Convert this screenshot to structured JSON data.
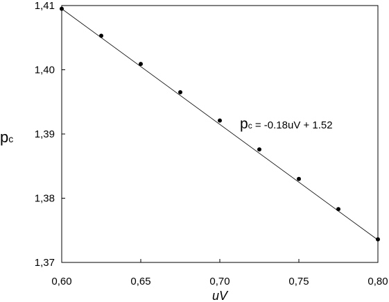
{
  "chart_data": {
    "type": "scatter",
    "xlabel": "uV",
    "ylabel": {
      "main": "p",
      "sub": "c"
    },
    "xlim": [
      0.6,
      0.8
    ],
    "ylim": [
      1.37,
      1.41
    ],
    "x_ticks": [
      0.6,
      0.65,
      0.7,
      0.75,
      0.8
    ],
    "y_ticks": [
      1.37,
      1.38,
      1.39,
      1.4,
      1.41
    ],
    "x_tick_labels": [
      "0,60",
      "0,65",
      "0,70",
      "0,75",
      "0,80"
    ],
    "y_tick_labels": [
      "1,37",
      "1,38",
      "1,39",
      "1,40",
      "1,41"
    ],
    "grid": false,
    "series": [
      {
        "x": [
          0.6,
          0.625,
          0.65,
          0.675,
          0.7,
          0.725,
          0.75,
          0.775,
          0.8
        ],
        "y": [
          1.4095,
          1.4053,
          1.4009,
          1.3965,
          1.3921,
          1.3876,
          1.383,
          1.3783,
          1.3736
        ]
      }
    ],
    "trendline": {
      "x": [
        0.6,
        0.8
      ],
      "y": [
        1.4095,
        1.3735
      ]
    },
    "annotation": {
      "main": "p",
      "sub": "c",
      "text": " = -0.18uV + 1.52"
    }
  }
}
